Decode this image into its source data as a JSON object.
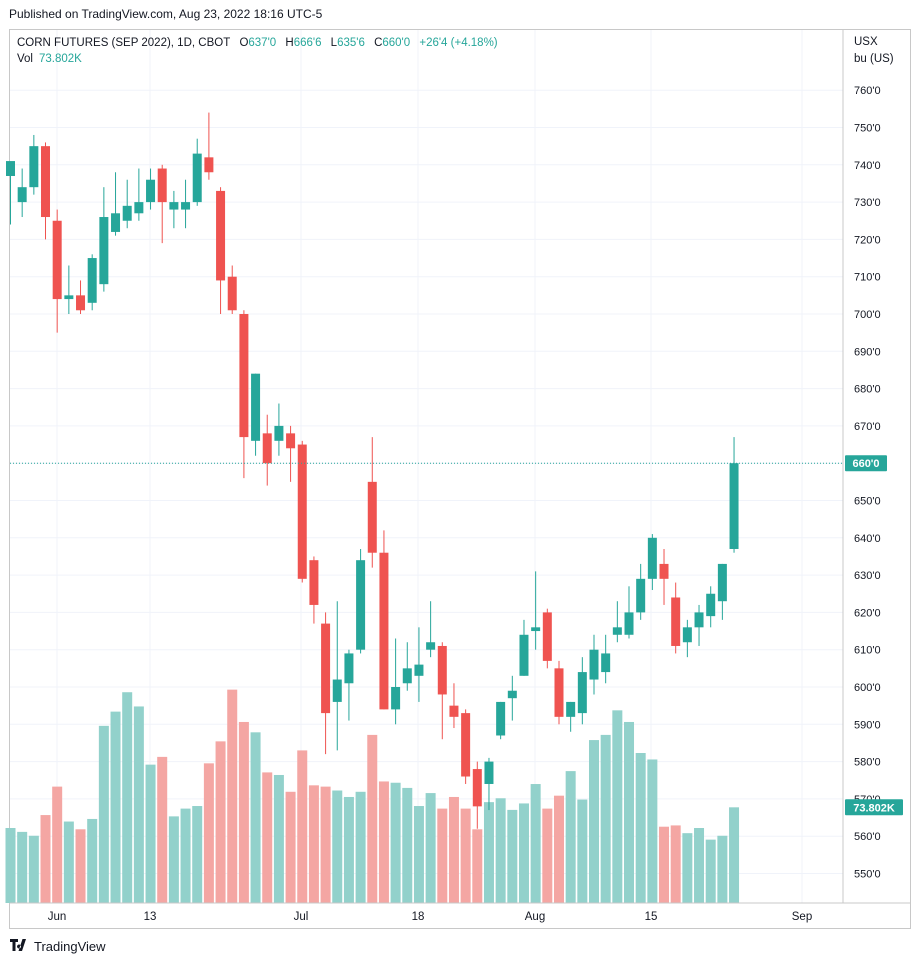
{
  "published": "Published on TradingView.com, Aug 23, 2022 18:16 UTC-5",
  "legend": {
    "symbol": "CORN FUTURES (SEP 2022), 1D, CBOT",
    "o_label": "O",
    "o_value": "637'0",
    "h_label": "H",
    "h_value": "666'6",
    "l_label": "L",
    "l_value": "635'6",
    "c_label": "C",
    "c_value": "660'0",
    "change": "+26'4 (+4.18%)",
    "vol_label": "Vol",
    "vol_value": "73.802K"
  },
  "axis_header": {
    "currency": "USX",
    "unit": "bu (US)"
  },
  "brand": "TradingView",
  "colors": {
    "up": "#26a69a",
    "down": "#ef5350",
    "up_vol": "#92d1cb",
    "down_vol": "#f4a6a3",
    "grid": "#f0f3fa",
    "text": "#131722"
  },
  "chart_data": {
    "type": "candlestick",
    "price_unit": "USX per bu (US)",
    "ylim": [
      543,
      773
    ],
    "y_ticks": [
      550,
      560,
      570,
      580,
      590,
      600,
      610,
      620,
      630,
      640,
      650,
      660,
      670,
      680,
      690,
      700,
      710,
      720,
      730,
      740,
      750,
      760
    ],
    "y_tick_labels": [
      "550'0",
      "560'0",
      "570'0",
      "580'0",
      "590'0",
      "600'0",
      "610'0",
      "620'0",
      "630'0",
      "640'0",
      "650'0",
      "660'0",
      "670'0",
      "680'0",
      "690'0",
      "700'0",
      "710'0",
      "720'0",
      "730'0",
      "740'0",
      "750'0",
      "760'0"
    ],
    "x_tick_labels": [
      {
        "label": "Jun",
        "date": "2022-06-01"
      },
      {
        "label": "13",
        "date": "2022-06-13"
      },
      {
        "label": "Jul",
        "date": "2022-07-01"
      },
      {
        "label": "18",
        "date": "2022-07-18"
      },
      {
        "label": "Aug",
        "date": "2022-08-01"
      },
      {
        "label": "15",
        "date": "2022-08-15"
      },
      {
        "label": "Sep",
        "date": "2022-09-01"
      }
    ],
    "last_price_label": "660'0",
    "last_price": 660,
    "last_volume_label": "73.802K",
    "candles": [
      {
        "date": "2022-05-26",
        "o": 737,
        "h": 740,
        "l": 724,
        "c": 741
      },
      {
        "date": "2022-05-27",
        "o": 730,
        "h": 739,
        "l": 726,
        "c": 734
      },
      {
        "date": "2022-05-31",
        "o": 734,
        "h": 748,
        "l": 732,
        "c": 745
      },
      {
        "date": "2022-06-01",
        "o": 745,
        "h": 746,
        "l": 720,
        "c": 726
      },
      {
        "date": "2022-06-02",
        "o": 725,
        "h": 728,
        "l": 695,
        "c": 704
      },
      {
        "date": "2022-06-03",
        "o": 704,
        "h": 713,
        "l": 700,
        "c": 705
      },
      {
        "date": "2022-06-06",
        "o": 705,
        "h": 709,
        "l": 700,
        "c": 701
      },
      {
        "date": "2022-06-07",
        "o": 703,
        "h": 716,
        "l": 701,
        "c": 715
      },
      {
        "date": "2022-06-08",
        "o": 708,
        "h": 734,
        "l": 706,
        "c": 726
      },
      {
        "date": "2022-06-09",
        "o": 722,
        "h": 738,
        "l": 721,
        "c": 727
      },
      {
        "date": "2022-06-10",
        "o": 725,
        "h": 736,
        "l": 723,
        "c": 729
      },
      {
        "date": "2022-06-13",
        "o": 727,
        "h": 739,
        "l": 725,
        "c": 730
      },
      {
        "date": "2022-06-14",
        "o": 730,
        "h": 739,
        "l": 728,
        "c": 736
      },
      {
        "date": "2022-06-15",
        "o": 739,
        "h": 740,
        "l": 719,
        "c": 730
      },
      {
        "date": "2022-06-16",
        "o": 728,
        "h": 733,
        "l": 723,
        "c": 730
      },
      {
        "date": "2022-06-17",
        "o": 728,
        "h": 736,
        "l": 723,
        "c": 730
      },
      {
        "date": "2022-06-20",
        "o": 730,
        "h": 747,
        "l": 729,
        "c": 743
      },
      {
        "date": "2022-06-21",
        "o": 742,
        "h": 754,
        "l": 736,
        "c": 738
      },
      {
        "date": "2022-06-22",
        "o": 733,
        "h": 734,
        "l": 700,
        "c": 709
      },
      {
        "date": "2022-06-23",
        "o": 710,
        "h": 713,
        "l": 700,
        "c": 701
      },
      {
        "date": "2022-06-24",
        "o": 700,
        "h": 701,
        "l": 656,
        "c": 667
      },
      {
        "date": "2022-06-27",
        "o": 666,
        "h": 684,
        "l": 662,
        "c": 684
      },
      {
        "date": "2022-06-28",
        "o": 668,
        "h": 673,
        "l": 654,
        "c": 660
      },
      {
        "date": "2022-06-29",
        "o": 666,
        "h": 676,
        "l": 662,
        "c": 670
      },
      {
        "date": "2022-06-30",
        "o": 668,
        "h": 670,
        "l": 655,
        "c": 664
      },
      {
        "date": "2022-07-01",
        "o": 665,
        "h": 666,
        "l": 628,
        "c": 629
      },
      {
        "date": "2022-07-05",
        "o": 634,
        "h": 635,
        "l": 617,
        "c": 622
      },
      {
        "date": "2022-07-06",
        "o": 617,
        "h": 620,
        "l": 582,
        "c": 593
      },
      {
        "date": "2022-07-07",
        "o": 596,
        "h": 623,
        "l": 583,
        "c": 602
      },
      {
        "date": "2022-07-08",
        "o": 601,
        "h": 610,
        "l": 591,
        "c": 609
      },
      {
        "date": "2022-07-11",
        "o": 610,
        "h": 637,
        "l": 609,
        "c": 634
      },
      {
        "date": "2022-07-12",
        "o": 655,
        "h": 667,
        "l": 632,
        "c": 636
      },
      {
        "date": "2022-07-13",
        "o": 636,
        "h": 642,
        "l": 594,
        "c": 594
      },
      {
        "date": "2022-07-14",
        "o": 594,
        "h": 613,
        "l": 590,
        "c": 600
      },
      {
        "date": "2022-07-15",
        "o": 601,
        "h": 612,
        "l": 599,
        "c": 605
      },
      {
        "date": "2022-07-18",
        "o": 603,
        "h": 616,
        "l": 596,
        "c": 606
      },
      {
        "date": "2022-07-19",
        "o": 610,
        "h": 623,
        "l": 608,
        "c": 612
      },
      {
        "date": "2022-07-20",
        "o": 611,
        "h": 612,
        "l": 586,
        "c": 598
      },
      {
        "date": "2022-07-21",
        "o": 595,
        "h": 601,
        "l": 589,
        "c": 592
      },
      {
        "date": "2022-07-22",
        "o": 593,
        "h": 594,
        "l": 574,
        "c": 576
      },
      {
        "date": "2022-07-25",
        "o": 578,
        "h": 580,
        "l": 562,
        "c": 568
      },
      {
        "date": "2022-07-26",
        "o": 574,
        "h": 581,
        "l": 567,
        "c": 580
      },
      {
        "date": "2022-07-27",
        "o": 587,
        "h": 596,
        "l": 586,
        "c": 596
      },
      {
        "date": "2022-07-28",
        "o": 597,
        "h": 603,
        "l": 591,
        "c": 599
      },
      {
        "date": "2022-07-29",
        "o": 603,
        "h": 618,
        "l": 603,
        "c": 614
      },
      {
        "date": "2022-07-31",
        "o": 615,
        "h": 631,
        "l": 610,
        "c": 616
      },
      {
        "date": "2022-08-01",
        "o": 620,
        "h": 621,
        "l": 605,
        "c": 607
      },
      {
        "date": "2022-08-02",
        "o": 605,
        "h": 607,
        "l": 590,
        "c": 592
      },
      {
        "date": "2022-08-03",
        "o": 592,
        "h": 596,
        "l": 588,
        "c": 596
      },
      {
        "date": "2022-08-04",
        "o": 593,
        "h": 608,
        "l": 590,
        "c": 604
      },
      {
        "date": "2022-08-05",
        "o": 602,
        "h": 614,
        "l": 598,
        "c": 610
      },
      {
        "date": "2022-08-08",
        "o": 604,
        "h": 614,
        "l": 601,
        "c": 609
      },
      {
        "date": "2022-08-09",
        "o": 614,
        "h": 623,
        "l": 612,
        "c": 616
      },
      {
        "date": "2022-08-10",
        "o": 614,
        "h": 627,
        "l": 613,
        "c": 620
      },
      {
        "date": "2022-08-11",
        "o": 620,
        "h": 633,
        "l": 618,
        "c": 629
      },
      {
        "date": "2022-08-12",
        "o": 629,
        "h": 641,
        "l": 626,
        "c": 640
      },
      {
        "date": "2022-08-15",
        "o": 633,
        "h": 637,
        "l": 622,
        "c": 629
      },
      {
        "date": "2022-08-16",
        "o": 624,
        "h": 628,
        "l": 609,
        "c": 611
      },
      {
        "date": "2022-08-17",
        "o": 612,
        "h": 618,
        "l": 608,
        "c": 616
      },
      {
        "date": "2022-08-18",
        "o": 616,
        "h": 622,
        "l": 611,
        "c": 620
      },
      {
        "date": "2022-08-19",
        "o": 619,
        "h": 627,
        "l": 616,
        "c": 625
      },
      {
        "date": "2022-08-22",
        "o": 623,
        "h": 633,
        "l": 618,
        "c": 633
      },
      {
        "date": "2022-08-23",
        "o": 637,
        "h": 667,
        "l": 636,
        "c": 660
      }
    ],
    "volume": {
      "unit": "contracts",
      "ylim": [
        0,
        232000
      ],
      "values": [
        58000,
        55000,
        52000,
        68000,
        90000,
        63000,
        57000,
        65000,
        137000,
        148000,
        163000,
        152000,
        107000,
        113000,
        67000,
        73000,
        75000,
        108000,
        125000,
        165000,
        140000,
        132000,
        101000,
        99000,
        86000,
        118000,
        91000,
        90000,
        87000,
        82000,
        86000,
        130000,
        94000,
        93000,
        89000,
        75000,
        85000,
        73000,
        82000,
        73000,
        57000,
        78000,
        81000,
        72000,
        77000,
        92000,
        73000,
        83000,
        102000,
        80000,
        126000,
        130000,
        149000,
        140000,
        116000,
        111000,
        59000,
        60000,
        54000,
        58000,
        49000,
        52000,
        74000
      ]
    }
  }
}
